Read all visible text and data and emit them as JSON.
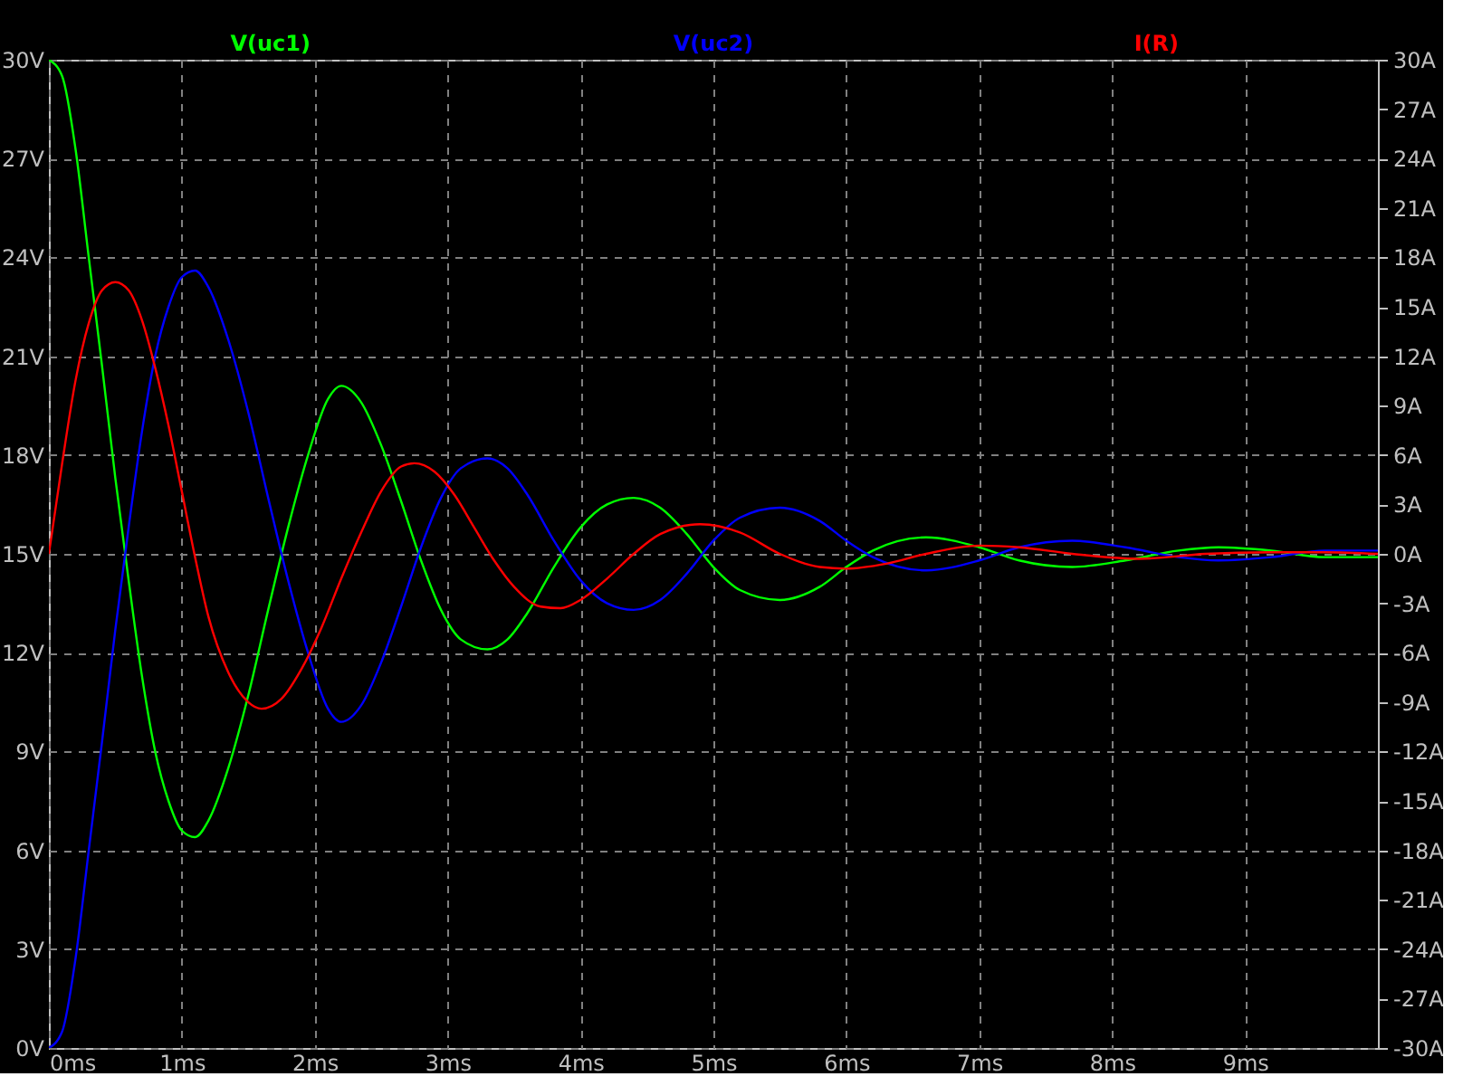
{
  "chart_data": {
    "type": "line",
    "xlim": [
      0,
      10
    ],
    "xticks": [
      {
        "value": 0,
        "label": "0ms"
      },
      {
        "value": 1,
        "label": "1ms"
      },
      {
        "value": 2,
        "label": "2ms"
      },
      {
        "value": 3,
        "label": "3ms"
      },
      {
        "value": 4,
        "label": "4ms"
      },
      {
        "value": 5,
        "label": "5ms"
      },
      {
        "value": 6,
        "label": "6ms"
      },
      {
        "value": 7,
        "label": "7ms"
      },
      {
        "value": 8,
        "label": "8ms"
      },
      {
        "value": 9,
        "label": "9ms"
      }
    ],
    "ylim": [
      0,
      30
    ],
    "yticks": [
      {
        "value": 0,
        "label": "0V"
      },
      {
        "value": 3,
        "label": "3V"
      },
      {
        "value": 6,
        "label": "6V"
      },
      {
        "value": 9,
        "label": "9V"
      },
      {
        "value": 12,
        "label": "12V"
      },
      {
        "value": 15,
        "label": "15V"
      },
      {
        "value": 18,
        "label": "18V"
      },
      {
        "value": 21,
        "label": "21V"
      },
      {
        "value": 24,
        "label": "24V"
      },
      {
        "value": 27,
        "label": "27V"
      },
      {
        "value": 30,
        "label": "30V"
      }
    ],
    "y2lim": [
      -30,
      30
    ],
    "y2ticks": [
      {
        "value": -30,
        "label": "-30A"
      },
      {
        "value": -27,
        "label": "-27A"
      },
      {
        "value": -24,
        "label": "-24A"
      },
      {
        "value": -21,
        "label": "-21A"
      },
      {
        "value": -18,
        "label": "-18A"
      },
      {
        "value": -15,
        "label": "-15A"
      },
      {
        "value": -12,
        "label": "-12A"
      },
      {
        "value": -9,
        "label": "-9A"
      },
      {
        "value": -6,
        "label": "-6A"
      },
      {
        "value": -3,
        "label": "-3A"
      },
      {
        "value": 0,
        "label": "0A"
      },
      {
        "value": 3,
        "label": "3A"
      },
      {
        "value": 6,
        "label": "6A"
      },
      {
        "value": 9,
        "label": "9A"
      },
      {
        "value": 12,
        "label": "12A"
      },
      {
        "value": 15,
        "label": "15A"
      },
      {
        "value": 18,
        "label": "18A"
      },
      {
        "value": 21,
        "label": "21A"
      },
      {
        "value": 24,
        "label": "24A"
      },
      {
        "value": 27,
        "label": "27A"
      },
      {
        "value": 30,
        "label": "30A"
      }
    ],
    "grid": true,
    "legend": "top",
    "marker": "none",
    "series": [
      {
        "name": "V(uc1)",
        "color": "#00ff00",
        "x": [
          0,
          0.1,
          0.2,
          0.3,
          0.4,
          0.5,
          0.6,
          0.7,
          0.8,
          0.9,
          1.0,
          1.1,
          1.2,
          1.35,
          1.5,
          1.65,
          1.8,
          1.95,
          2.1,
          2.2,
          2.35,
          2.5,
          2.65,
          2.8,
          2.95,
          3.1,
          3.3,
          3.45,
          3.6,
          3.8,
          4.0,
          4.2,
          4.4,
          4.6,
          4.8,
          5.0,
          5.2,
          5.5,
          5.8,
          6.0,
          6.2,
          6.6,
          7.0,
          7.3,
          7.7,
          8.1,
          8.5,
          8.8,
          9.2,
          9.6,
          10
        ],
        "values": [
          30,
          29.5,
          27.3,
          24,
          20.7,
          17.3,
          14.2,
          11.3,
          9.0,
          7.5,
          6.6,
          6.4,
          6.9,
          8.5,
          10.7,
          13.3,
          15.8,
          18.0,
          19.7,
          20.1,
          19.6,
          18.3,
          16.6,
          14.8,
          13.3,
          12.4,
          12.1,
          12.4,
          13.2,
          14.6,
          15.8,
          16.5,
          16.7,
          16.4,
          15.6,
          14.6,
          13.9,
          13.6,
          14.0,
          14.6,
          15.1,
          15.5,
          15.2,
          14.8,
          14.6,
          14.8,
          15.1,
          15.2,
          15.1,
          14.9,
          14.9
        ]
      },
      {
        "name": "V(uc2)",
        "color": "#0000ff",
        "x": [
          0,
          0.1,
          0.2,
          0.3,
          0.4,
          0.5,
          0.6,
          0.7,
          0.8,
          0.9,
          1.0,
          1.1,
          1.2,
          1.35,
          1.5,
          1.65,
          1.8,
          1.95,
          2.1,
          2.2,
          2.35,
          2.5,
          2.65,
          2.8,
          2.95,
          3.1,
          3.3,
          3.45,
          3.6,
          3.8,
          4.0,
          4.2,
          4.4,
          4.6,
          4.8,
          5.0,
          5.2,
          5.5,
          5.8,
          6.0,
          6.2,
          6.6,
          7.0,
          7.3,
          7.7,
          8.1,
          8.5,
          8.8,
          9.2,
          9.6,
          10
        ],
        "values": [
          0,
          0.5,
          2.7,
          6.0,
          9.3,
          12.7,
          15.8,
          18.7,
          21.0,
          22.5,
          23.4,
          23.6,
          23.1,
          21.5,
          19.3,
          16.7,
          14.2,
          12.0,
          10.3,
          9.9,
          10.4,
          11.7,
          13.4,
          15.2,
          16.7,
          17.6,
          17.9,
          17.6,
          16.8,
          15.4,
          14.2,
          13.5,
          13.3,
          13.6,
          14.4,
          15.4,
          16.1,
          16.4,
          16.0,
          15.4,
          14.9,
          14.5,
          14.8,
          15.2,
          15.4,
          15.2,
          14.9,
          14.8,
          14.9,
          15.1,
          15.1
        ]
      },
      {
        "name": "I(R)",
        "color": "#ff0000",
        "axis": "y2",
        "x": [
          0,
          0.1,
          0.2,
          0.3,
          0.4,
          0.5,
          0.6,
          0.7,
          0.8,
          0.9,
          1.0,
          1.1,
          1.2,
          1.35,
          1.5,
          1.6,
          1.75,
          1.9,
          2.05,
          2.2,
          2.35,
          2.5,
          2.65,
          2.75,
          2.9,
          3.05,
          3.2,
          3.35,
          3.5,
          3.7,
          3.85,
          4.0,
          4.2,
          4.4,
          4.6,
          4.9,
          5.2,
          5.5,
          5.8,
          6.0,
          6.3,
          6.6,
          7.0,
          7.3,
          7.7,
          8.2,
          8.7,
          9.2,
          9.6,
          10
        ],
        "values": [
          0,
          5.5,
          10.5,
          14.0,
          16.0,
          16.5,
          16.0,
          14.2,
          11.3,
          7.8,
          3.8,
          -0.2,
          -3.8,
          -7.2,
          -9.0,
          -9.4,
          -8.8,
          -7.0,
          -4.5,
          -1.5,
          1.3,
          3.8,
          5.3,
          5.5,
          5.0,
          3.6,
          1.6,
          -0.4,
          -2.0,
          -3.2,
          -3.3,
          -2.8,
          -1.5,
          0.0,
          1.2,
          1.8,
          1.3,
          0.0,
          -0.8,
          -0.9,
          -0.6,
          0.0,
          0.5,
          0.4,
          0.0,
          -0.3,
          0.0,
          0.1,
          0.1,
          0.0
        ]
      }
    ]
  }
}
